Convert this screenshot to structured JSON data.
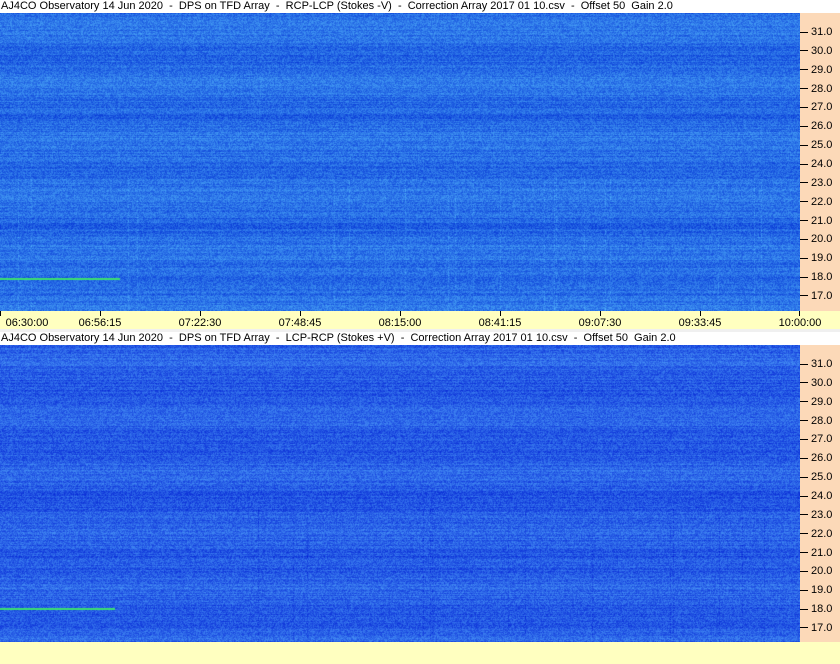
{
  "panels": [
    {
      "title": "AJ4CO Observatory 14 Jun 2020  -  DPS on TFD Array  -  RCP-LCP (Stokes -V)  -  Correction Array 2017 01 10.csv  -  Offset 50  Gain 2.0",
      "base_color": "#2a6be6"
    },
    {
      "title": "AJ4CO Observatory 14 Jun 2020  -  DPS on TFD Array  -  LCP-RCP (Stokes +V)  -  Correction Array 2017 01 10.csv  -  Offset 50  Gain 2.0",
      "base_color": "#2a5ce2"
    }
  ],
  "y_ticks": [
    "31.0",
    "30.0",
    "29.0",
    "28.0",
    "27.0",
    "26.0",
    "25.0",
    "24.0",
    "23.0",
    "22.0",
    "21.0",
    "20.0",
    "19.0",
    "18.0",
    "17.0"
  ],
  "x_ticks": [
    "06:30:00",
    "06:56:15",
    "07:22:30",
    "07:48:45",
    "08:15:00",
    "08:41:15",
    "09:07:30",
    "09:33:45",
    "10:00:00"
  ],
  "colors": {
    "axis_bg": "#ffffc0",
    "freq_axis_bg": "#fcd9b8"
  }
}
